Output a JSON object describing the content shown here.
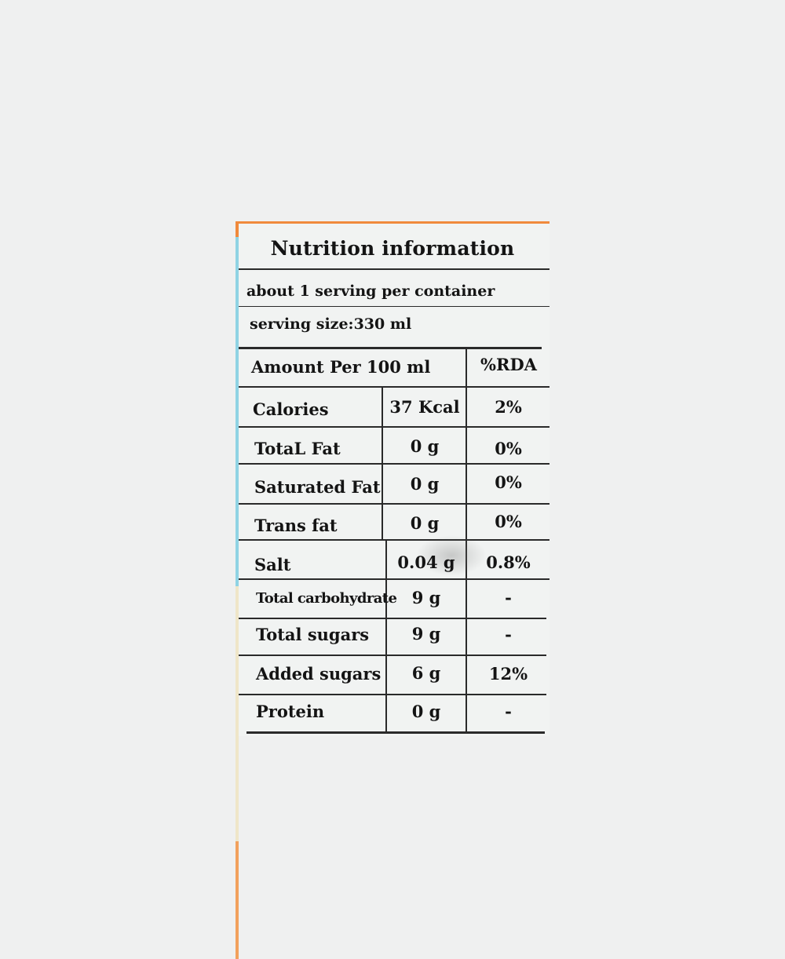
{
  "title": "Nutrition information",
  "servings_per_container": "about 1 serving per container",
  "serving_size": "serving size:330 ml",
  "header": {
    "amount": "Amount Per 100 ml",
    "rda": "%RDA"
  },
  "rows": [
    {
      "nutrient": "Calories",
      "amount": "37 Kcal",
      "rda": "2%"
    },
    {
      "nutrient": "TotaL Fat",
      "amount": "0 g",
      "rda": "0%"
    },
    {
      "nutrient": "Saturated Fat",
      "amount": "0 g",
      "rda": "0%"
    },
    {
      "nutrient": "Trans fat",
      "amount": "0 g",
      "rda": "0%"
    },
    {
      "nutrient": "Salt",
      "amount": "0.04 g",
      "rda": "0.8%"
    },
    {
      "nutrient": "Total carbohydrate",
      "amount": "9 g",
      "rda": "-"
    },
    {
      "nutrient": "Total sugars",
      "amount": "9 g",
      "rda": "-"
    },
    {
      "nutrient": "Added sugars",
      "amount": "6 g",
      "rda": "12%"
    },
    {
      "nutrient": "Protein",
      "amount": "0 g",
      "rda": "-"
    }
  ],
  "colors": {
    "background": "#eff0f0",
    "label": "#f1f3f2",
    "ink": "#141414",
    "accent_orange": "#f08a3c",
    "accent_cyan": "#8fd3e4"
  }
}
